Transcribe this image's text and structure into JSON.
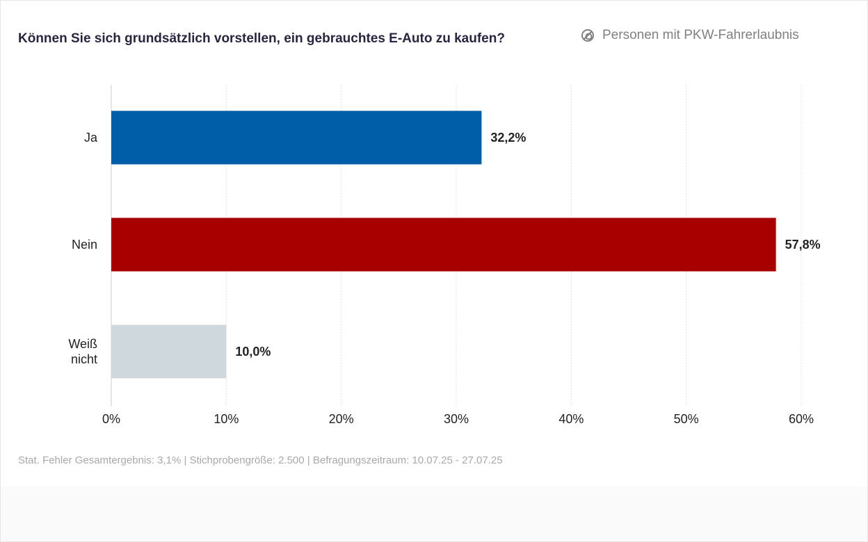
{
  "title": "Können Sie sich grundsätzlich vorstellen, ein gebrauchtes E-Auto zu kaufen?",
  "filter": {
    "icon": "filter-circle-icon",
    "label": "Personen mit PKW-Fahrerlaubnis"
  },
  "note": "Stat. Fehler Gesamtergebnis: 3,1% | Stichprobengröße: 2.500 | Befragungszeitraum: 10.07.25 - 27.07.25",
  "chart_data": {
    "type": "bar",
    "orientation": "horizontal",
    "categories": [
      "Ja",
      "Nein",
      "Weiß nicht"
    ],
    "values": [
      32.2,
      57.8,
      10.0
    ],
    "value_labels": [
      "32,2%",
      "57,8%",
      "10,0%"
    ],
    "colors": [
      "#005ea8",
      "#a80000",
      "#cfd8dc"
    ],
    "xlim": [
      0,
      60
    ],
    "xticks": [
      0,
      10,
      20,
      30,
      40,
      50,
      60
    ],
    "xtick_labels": [
      "0%",
      "10%",
      "20%",
      "30%",
      "40%",
      "50%",
      "60%"
    ],
    "grid": true
  }
}
